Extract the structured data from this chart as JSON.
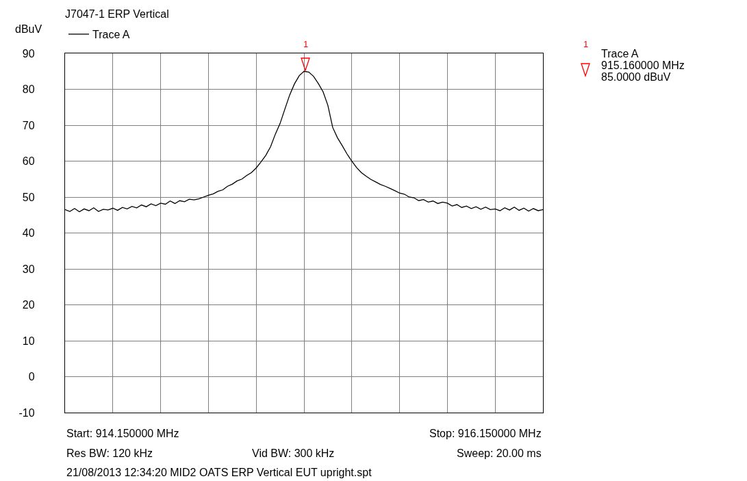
{
  "chart_data": {
    "type": "line",
    "title": "J7047-1 ERP Vertical",
    "ylabel": "dBuV",
    "legend": "top left",
    "grid": true,
    "marker": "none",
    "line_style": "solid",
    "ylim": [
      -10,
      90
    ],
    "yticks": [
      -10,
      0,
      10,
      20,
      30,
      40,
      50,
      60,
      70,
      80,
      90
    ],
    "tick_labels": "y",
    "categories": [
      null,
      null,
      null,
      null,
      null,
      null,
      null,
      null,
      null,
      null,
      null,
      null,
      null,
      null,
      null,
      null,
      null,
      null,
      null,
      null,
      null,
      null,
      null,
      null,
      null,
      null,
      null,
      null,
      null,
      null,
      null,
      null,
      null,
      null,
      null,
      null,
      null,
      null,
      null,
      null,
      null,
      null,
      null,
      null,
      null,
      null,
      null,
      null,
      null,
      null,
      null,
      null,
      null,
      null,
      null,
      null,
      null,
      null,
      null,
      null,
      null,
      null,
      null,
      null,
      null,
      null,
      null,
      null,
      null,
      null,
      null,
      null,
      null,
      null,
      null,
      null,
      null,
      null,
      null,
      null,
      null,
      null,
      null,
      null,
      null,
      null,
      null,
      null,
      null,
      null,
      null,
      null,
      null,
      null,
      null,
      null,
      null,
      null,
      null,
      null,
      null
    ],
    "series": [
      {
        "name": "Trace A",
        "color": "#000000",
        "values": [
          46.5,
          46.0,
          46.8,
          45.9,
          46.7,
          46.2,
          47.0,
          46.0,
          46.6,
          46.4,
          46.9,
          46.3,
          47.1,
          46.7,
          47.4,
          47.0,
          47.8,
          47.3,
          48.1,
          47.6,
          48.3,
          48.0,
          48.9,
          48.2,
          49.0,
          48.7,
          49.4,
          49.2,
          49.5,
          50.0,
          50.5,
          50.9,
          51.6,
          52.0,
          53.0,
          53.6,
          54.5,
          55.0,
          56.0,
          56.8,
          58.1,
          59.8,
          61.6,
          64.0,
          67.5,
          70.5,
          74.5,
          78.4,
          81.5,
          83.8,
          85.0,
          84.8,
          83.6,
          81.6,
          79.3,
          75.5,
          69.4,
          66.5,
          64.3,
          62.0,
          60.0,
          58.2,
          56.8,
          55.8,
          54.9,
          54.2,
          53.5,
          53.0,
          52.4,
          51.8,
          51.1,
          50.8,
          50.0,
          49.8,
          49.0,
          49.3,
          48.6,
          48.9,
          48.2,
          48.6,
          48.3,
          47.5,
          47.9,
          47.1,
          47.5,
          46.8,
          47.3,
          46.6,
          47.2,
          46.5,
          46.7,
          46.2,
          47.0,
          46.4,
          47.2,
          46.3,
          46.9,
          46.1,
          46.8,
          46.2,
          46.5
        ]
      }
    ],
    "annotations": [
      "1",
      "1",
      "Trace A",
      "915.160000 MHz",
      "85.0000 dBuV",
      "Start: 914.150000 MHz",
      "Stop: 916.150000 MHz",
      "Res BW: 120 kHz",
      "Vid BW: 300 kHz",
      "Sweep: 20.00 ms",
      "21/08/2013 12:34:20 MID2 OATS ERP Vertical EUT upright.spt"
    ]
  }
}
